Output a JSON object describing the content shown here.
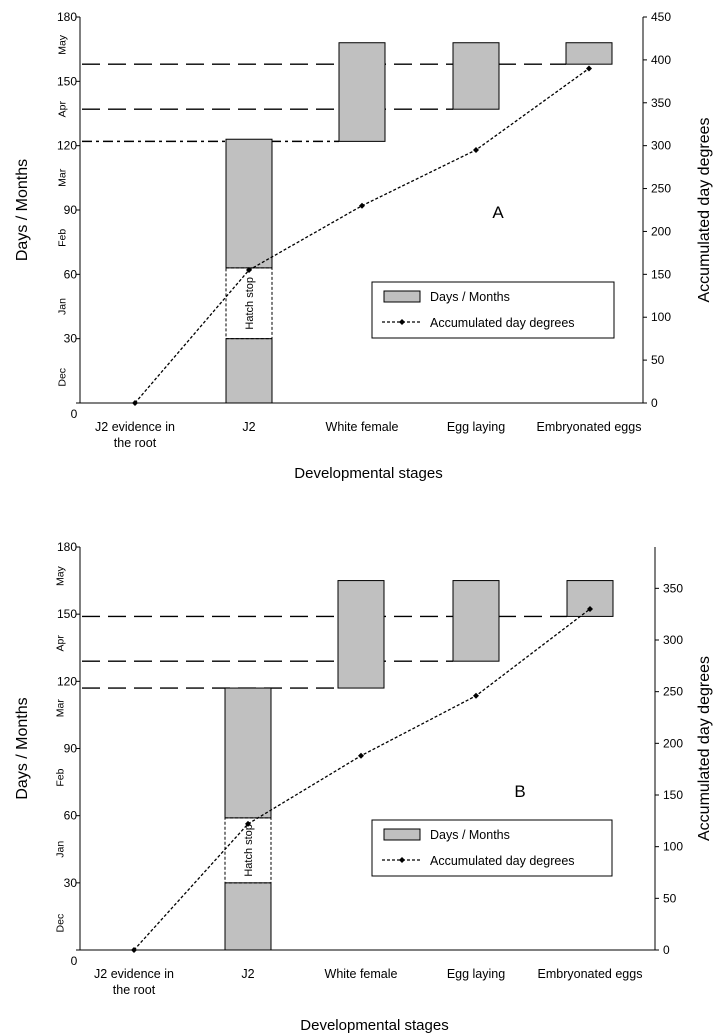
{
  "chart_data": [
    {
      "type": "bar",
      "panel_label": "A",
      "categories": [
        "J2 evidence in\nthe root",
        "J2",
        "White female",
        "Egg laying",
        "Embryonated eggs"
      ],
      "xlabel": "Developmental stages",
      "ylabel": "Days / Months",
      "y2label": "Accumulated day degrees",
      "ylim": [
        0,
        180
      ],
      "y2lim": [
        0,
        450
      ],
      "yticks": [
        0,
        30,
        60,
        90,
        120,
        150,
        180
      ],
      "y2ticks": [
        0,
        50,
        100,
        150,
        200,
        250,
        300,
        350,
        400,
        450
      ],
      "months": [
        {
          "label": "Dec",
          "value": 12
        },
        {
          "label": "Jan",
          "value": 45
        },
        {
          "label": "Feb",
          "value": 77
        },
        {
          "label": "Mar",
          "value": 105
        },
        {
          "label": "Apr",
          "value": 137
        },
        {
          "label": "May",
          "value": 167
        }
      ],
      "series": [
        {
          "name": "Days / Months",
          "kind": "floating-bar",
          "color": "#c0c0c0",
          "bars": [
            {
              "category": 1,
              "segments": [
                [
                  0,
                  30
                ],
                [
                  63,
                  123
                ]
              ],
              "gap": [
                30,
                63
              ],
              "gap_label": "Hatch stop"
            },
            {
              "category": 2,
              "segments": [
                [
                  122,
                  168
                ]
              ]
            },
            {
              "category": 3,
              "segments": [
                [
                  137,
                  168
                ]
              ]
            },
            {
              "category": 4,
              "segments": [
                [
                  158,
                  168
                ]
              ]
            }
          ]
        },
        {
          "name": "Accumulated day degrees",
          "kind": "line",
          "axis": "right",
          "values": [
            0,
            155,
            230,
            295,
            390
          ]
        }
      ],
      "reference_lines": [
        {
          "value": 158,
          "from_category": 0,
          "to_category": 4,
          "style": "long-dash"
        },
        {
          "value": 137,
          "from_category": 0,
          "to_category": 3,
          "style": "long-dash"
        },
        {
          "value": 122,
          "from_category": 0,
          "to_category": 2,
          "style": "dash-dot"
        }
      ],
      "legend": [
        "Days / Months",
        "Accumulated day degrees"
      ],
      "legend_position": "center-right",
      "grid": false
    },
    {
      "type": "bar",
      "panel_label": "B",
      "categories": [
        "J2 evidence in\nthe root",
        "J2",
        "White female",
        "Egg laying",
        "Embryonated eggs"
      ],
      "xlabel": "Developmental stages",
      "ylabel": "Days / Months",
      "y2label": "Accumulated day degrees",
      "ylim": [
        0,
        180
      ],
      "y2lim": [
        0,
        390
      ],
      "yticks": [
        0,
        30,
        60,
        90,
        120,
        150,
        180
      ],
      "y2ticks": [
        0,
        50,
        100,
        150,
        200,
        250,
        300,
        350
      ],
      "months": [
        {
          "label": "Dec",
          "value": 12
        },
        {
          "label": "Jan",
          "value": 45
        },
        {
          "label": "Feb",
          "value": 77
        },
        {
          "label": "Mar",
          "value": 108
        },
        {
          "label": "Apr",
          "value": 137
        },
        {
          "label": "May",
          "value": 167
        }
      ],
      "series": [
        {
          "name": "Days / Months",
          "kind": "floating-bar",
          "color": "#c0c0c0",
          "bars": [
            {
              "category": 1,
              "segments": [
                [
                  0,
                  30
                ],
                [
                  59,
                  117
                ]
              ],
              "gap": [
                30,
                59
              ],
              "gap_label": "Hatch stop"
            },
            {
              "category": 2,
              "segments": [
                [
                  117,
                  165
                ]
              ]
            },
            {
              "category": 3,
              "segments": [
                [
                  129,
                  165
                ]
              ]
            },
            {
              "category": 4,
              "segments": [
                [
                  149,
                  165
                ]
              ]
            }
          ]
        },
        {
          "name": "Accumulated day degrees",
          "kind": "line",
          "axis": "right",
          "values": [
            0,
            122,
            188,
            246,
            330
          ]
        }
      ],
      "reference_lines": [
        {
          "value": 149,
          "from_category": 0,
          "to_category": 4,
          "style": "long-dash"
        },
        {
          "value": 129,
          "from_category": 0,
          "to_category": 3,
          "style": "long-dash"
        },
        {
          "value": 117,
          "from_category": 0,
          "to_category": 2,
          "style": "long-dash"
        }
      ],
      "legend": [
        "Days / Months",
        "Accumulated day degrees"
      ],
      "legend_position": "center-right",
      "grid": false
    }
  ]
}
